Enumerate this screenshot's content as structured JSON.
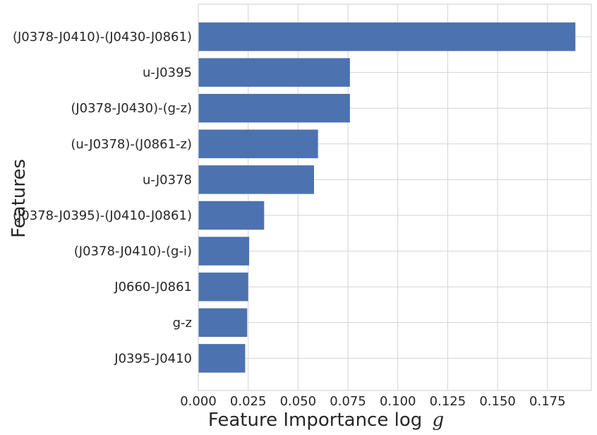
{
  "chart_data": {
    "type": "bar",
    "orientation": "horizontal",
    "categories": [
      "(J0378-J0410)-(J0430-J0861)",
      "u-J0395",
      "(J0378-J0430)-(g-z)",
      "(u-J0378)-(J0861-z)",
      "u-J0378",
      "(J0378-J0395)-(J0410-J0861)",
      "(J0378-J0410)-(g-i)",
      "J0660-J0861",
      "g-z",
      "J0395-J0410"
    ],
    "values": [
      0.189,
      0.076,
      0.076,
      0.06,
      0.058,
      0.033,
      0.0255,
      0.025,
      0.0245,
      0.0235
    ],
    "xlabel_main": "Feature Importance log",
    "xlabel_symbol": "g",
    "ylabel": "Features",
    "xlim": [
      0,
      0.197
    ],
    "xticks": [
      "0.000",
      "0.025",
      "0.050",
      "0.075",
      "0.100",
      "0.125",
      "0.150",
      "0.175"
    ],
    "grid": true,
    "bar_color": "#4c72b0"
  }
}
